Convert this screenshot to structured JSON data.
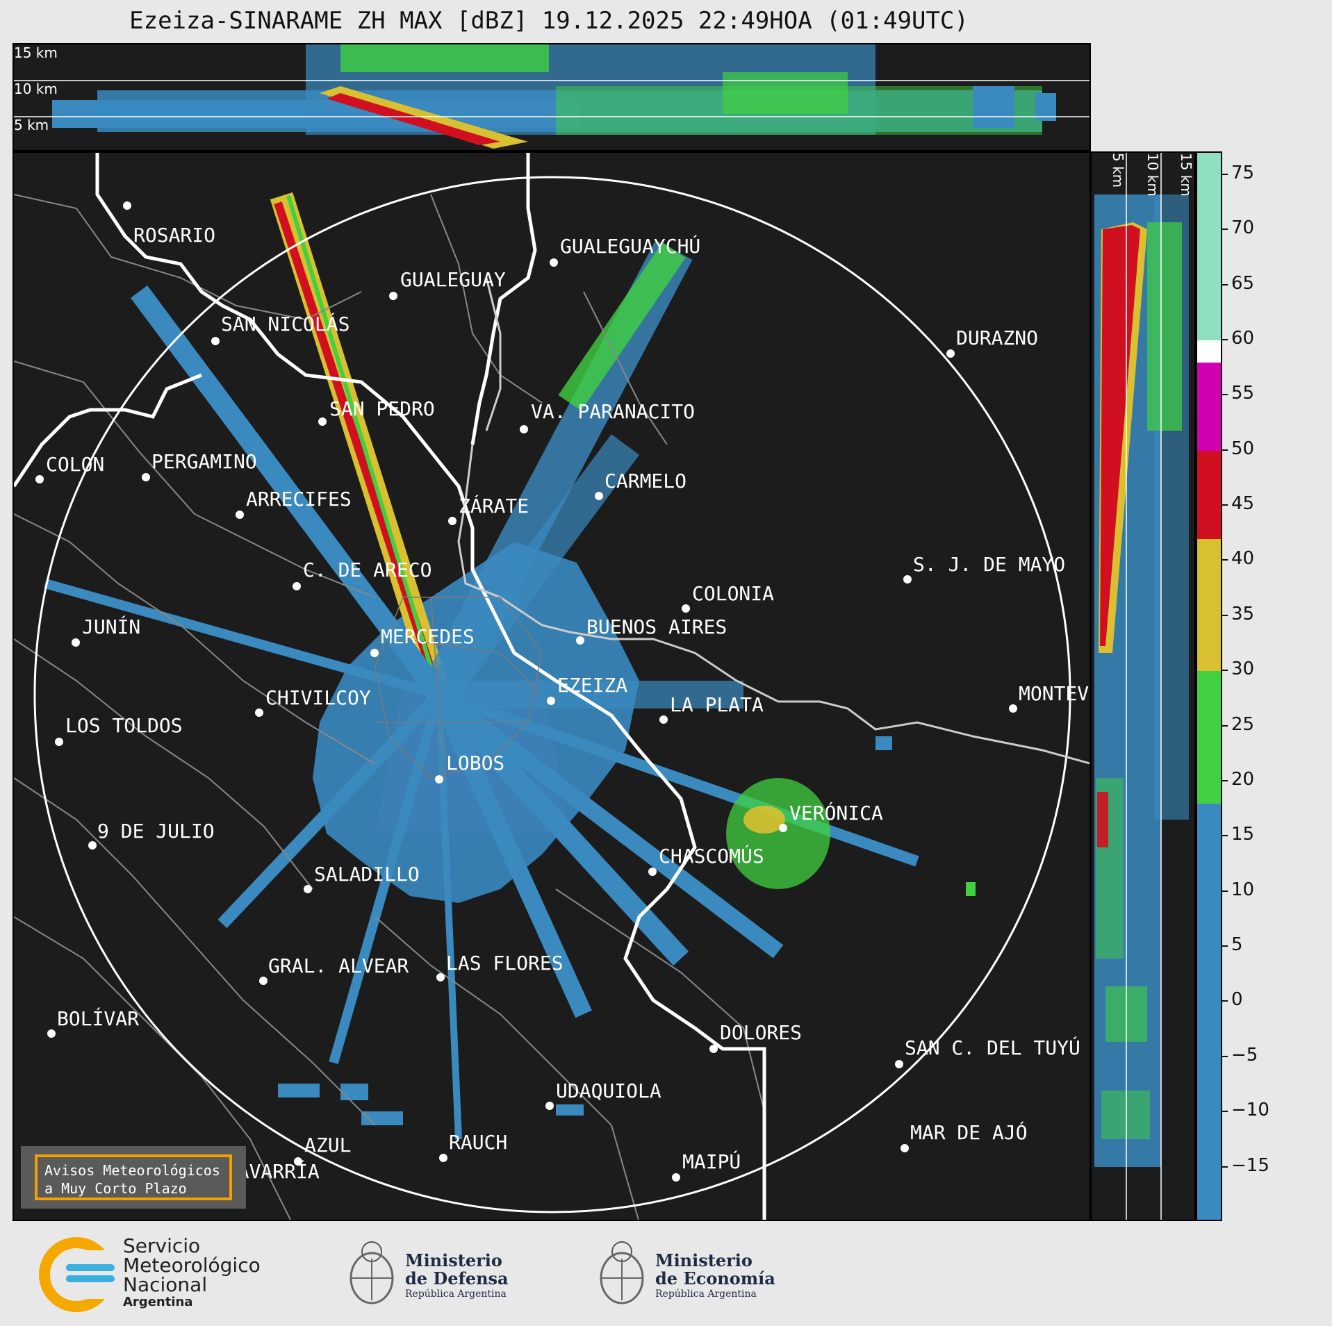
{
  "title": "Ezeiza-SINARAME ZH MAX [dBZ] 19.12.2025 22:49HOA (01:49UTC)",
  "top_panel": {
    "height_labels": [
      "15 km",
      "10 km",
      "5 km"
    ]
  },
  "right_panel": {
    "height_labels": [
      "5 km",
      "10 km",
      "15 km"
    ]
  },
  "cities": [
    {
      "name": "ROSARIO"
    },
    {
      "name": "GUALEGUAYCHÚ"
    },
    {
      "name": "GUALEGUAY"
    },
    {
      "name": "SAN NICOLÁS"
    },
    {
      "name": "DURAZNO"
    },
    {
      "name": "SAN PEDRO"
    },
    {
      "name": "VA. PARANACITO"
    },
    {
      "name": "COLON"
    },
    {
      "name": "PERGAMINO"
    },
    {
      "name": "CARMELO"
    },
    {
      "name": "ARRECIFES"
    },
    {
      "name": "ZÁRATE"
    },
    {
      "name": "C. DE ARECO"
    },
    {
      "name": "S. J. DE MAYO"
    },
    {
      "name": "COLONIA"
    },
    {
      "name": "JUNÍN"
    },
    {
      "name": "BUENOS AIRES"
    },
    {
      "name": "MERCEDES"
    },
    {
      "name": "EZEIZA"
    },
    {
      "name": "MONTEVIDEO"
    },
    {
      "name": "CHIVILCOY"
    },
    {
      "name": "LA PLATA"
    },
    {
      "name": "LOS TOLDOS"
    },
    {
      "name": "LOBOS"
    },
    {
      "name": "VERÓNICA"
    },
    {
      "name": "9 DE JULIO"
    },
    {
      "name": "CHASCOMÚS"
    },
    {
      "name": "SALADILLO"
    },
    {
      "name": "GRAL. ALVEAR"
    },
    {
      "name": "LAS FLORES"
    },
    {
      "name": "BOLÍVAR"
    },
    {
      "name": "DOLORES"
    },
    {
      "name": "SAN C. DEL TUYÚ"
    },
    {
      "name": "UDAQUIOLA"
    },
    {
      "name": "MAR DE AJÓ"
    },
    {
      "name": "RAUCH"
    },
    {
      "name": "AZUL"
    },
    {
      "name": "OLAVARRÍA"
    },
    {
      "name": "MAIPÚ"
    }
  ],
  "colorbar": {
    "unit": "dBZ",
    "range": [
      -20,
      77
    ],
    "ticks": [
      75,
      70,
      65,
      60,
      55,
      50,
      45,
      40,
      35,
      30,
      25,
      20,
      15,
      10,
      5,
      0,
      -5,
      -10,
      -15
    ],
    "tick_labels": [
      "75",
      "70",
      "65",
      "60",
      "55",
      "50",
      "45",
      "40",
      "35",
      "30",
      "25",
      "20",
      "15",
      "10",
      "5",
      "0",
      "−5",
      "−10",
      "−15"
    ],
    "colors": [
      {
        "from": 60,
        "to": 77,
        "color": "#8ee0c0"
      },
      {
        "from": 58,
        "to": 60,
        "color": "#ffffff"
      },
      {
        "from": 50,
        "to": 58,
        "color": "#d000b0"
      },
      {
        "from": 42,
        "to": 50,
        "color": "#d01020"
      },
      {
        "from": 30,
        "to": 42,
        "color": "#d8c030"
      },
      {
        "from": 18,
        "to": 30,
        "color": "#40d040"
      },
      {
        "from": -20,
        "to": 18,
        "color": "#3a8ac0"
      }
    ]
  },
  "aviso": {
    "line1": "Avisos Meteorológicos",
    "line2": "a Muy Corto Plazo"
  },
  "footer": {
    "smn": {
      "line1": "Servicio",
      "line2": "Meteorológico",
      "line3": "Nacional",
      "line4": "Argentina"
    },
    "defensa": {
      "line1": "Ministerio",
      "line2": "de Defensa",
      "line3": "República Argentina"
    },
    "economia": {
      "line1": "Ministerio",
      "line2": "de Economía",
      "line3": "República Argentina"
    }
  }
}
